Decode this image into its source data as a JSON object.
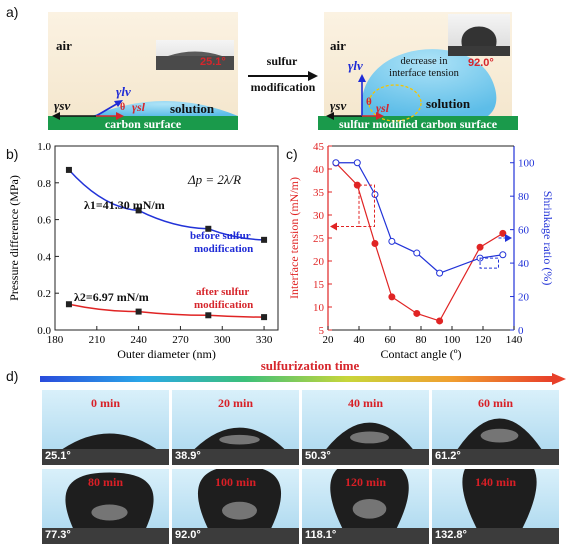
{
  "panel_a": {
    "letter": "a)",
    "left": {
      "air": "air",
      "inset_angle": "25.1°",
      "gamma_lv": "γlv",
      "theta": "θ",
      "gamma_sl": "γsl",
      "gamma_sv": "γsv",
      "solution": "solution",
      "surface": "carbon surface"
    },
    "arrow_top": "sulfur",
    "arrow_bottom": "modification",
    "right": {
      "air": "air",
      "inset_angle": "92.0°",
      "gamma_lv": "γlv",
      "note_line1": "decrease in",
      "note_line2": "interface tension",
      "theta": "θ",
      "gamma_sl": "γsl",
      "gamma_sv": "γsv",
      "solution": "solution",
      "surface": "sulfur modified carbon surface"
    }
  },
  "panel_b": {
    "letter": "b)",
    "formula": "Δp = 2λ/R",
    "label_before": "λ1=41.30 mN/m",
    "label_after": "λ2=6.97 mN/m",
    "note_before_1": "before sulfur",
    "note_before_2": "modification",
    "note_after_1": "after sulfur",
    "note_after_2": "modification",
    "chart_data": {
      "type": "line",
      "xlabel": "Outer diameter (nm)",
      "ylabel": "Pressure difference (MPa)",
      "xlim": [
        180,
        340
      ],
      "ylim": [
        0.0,
        1.0
      ],
      "xticks": [
        180,
        210,
        240,
        270,
        300,
        330
      ],
      "yticks": [
        0.0,
        0.2,
        0.4,
        0.6,
        0.8,
        1.0
      ],
      "series": [
        {
          "points": [
            [
              190,
              0.87
            ],
            [
              240,
              0.65
            ],
            [
              290,
              0.55
            ],
            [
              330,
              0.49
            ]
          ],
          "color": "#2233d8"
        },
        {
          "points": [
            [
              190,
              0.14
            ],
            [
              240,
              0.1
            ],
            [
              290,
              0.08
            ],
            [
              330,
              0.07
            ]
          ],
          "color": "#e02424"
        }
      ]
    }
  },
  "panel_c": {
    "letter": "c)",
    "chart_data": {
      "type": "line",
      "xlabel": "Contact angle (º)",
      "ylabel_left": "Interface tension (mN/m)",
      "ylabel_right": "Shrinkage ratio (%)",
      "xlim": [
        20,
        140
      ],
      "ylim_left": [
        5,
        45
      ],
      "ylim_right": [
        0,
        110
      ],
      "xticks": [
        20,
        40,
        60,
        80,
        100,
        120,
        140
      ],
      "yticks_left": [
        5,
        10,
        15,
        20,
        25,
        30,
        35,
        40,
        45
      ],
      "yticks_right": [
        0,
        20,
        40,
        60,
        80,
        100
      ],
      "series": [
        {
          "axis": "left",
          "color": "#e02424",
          "marker": "filled",
          "points": [
            [
              25.1,
              41.3
            ],
            [
              38.9,
              36.5
            ],
            [
              50.3,
              23.8
            ],
            [
              61.2,
              12.2
            ],
            [
              77.3,
              8.6
            ],
            [
              92.0,
              6.97
            ],
            [
              118.1,
              23.0
            ],
            [
              132.8,
              26.0
            ]
          ]
        },
        {
          "axis": "right",
          "color": "#2233d8",
          "marker": "open",
          "points": [
            [
              25.1,
              100
            ],
            [
              38.9,
              100
            ],
            [
              50.3,
              81
            ],
            [
              61.2,
              53
            ],
            [
              77.3,
              46
            ],
            [
              92.0,
              34
            ],
            [
              118.1,
              43
            ],
            [
              132.8,
              45
            ]
          ]
        }
      ]
    }
  },
  "panel_d": {
    "letter": "d)",
    "bar_label": "sulfurization time",
    "photos": [
      {
        "time": "0 min",
        "angle": "25.1°",
        "drop": 0.22
      },
      {
        "time": "20 min",
        "angle": "38.9°",
        "drop": 0.36
      },
      {
        "time": "40 min",
        "angle": "50.3°",
        "drop": 0.48
      },
      {
        "time": "60 min",
        "angle": "61.2°",
        "drop": 0.58
      },
      {
        "time": "80 min",
        "angle": "77.3°",
        "drop": 0.7
      },
      {
        "time": "100 min",
        "angle": "92.0°",
        "drop": 0.8
      },
      {
        "time": "120 min",
        "angle": "118.1°",
        "drop": 0.9
      },
      {
        "time": "140 min",
        "angle": "132.8°",
        "drop": 1.0
      }
    ]
  }
}
